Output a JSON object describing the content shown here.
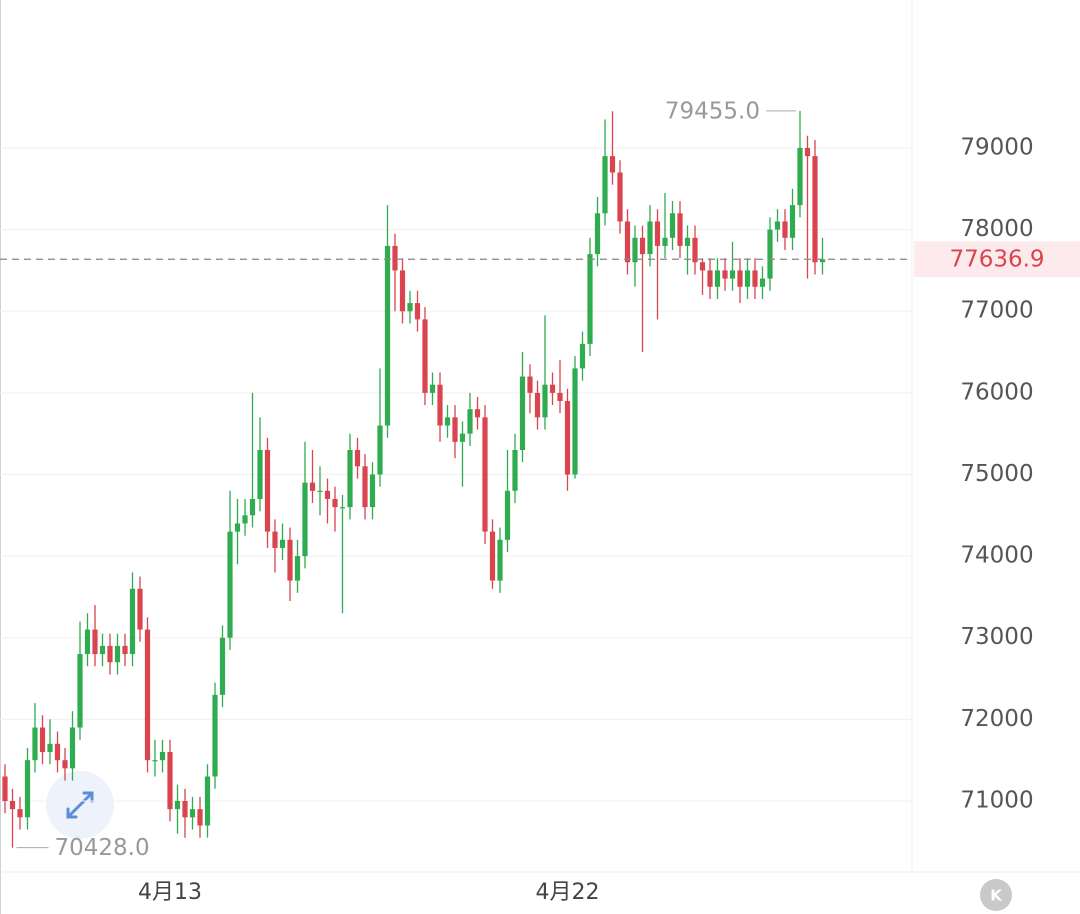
{
  "chart_data": {
    "type": "candlestick",
    "categories": [
      null,
      null,
      null,
      null,
      null,
      null,
      null,
      null,
      null,
      null,
      null,
      null,
      null,
      null,
      null,
      null,
      null,
      null,
      null,
      null,
      null,
      null,
      "4月13",
      null,
      null,
      null,
      null,
      null,
      null,
      null,
      null,
      null,
      null,
      null,
      null,
      null,
      null,
      null,
      null,
      null,
      null,
      null,
      null,
      null,
      null,
      null,
      null,
      null,
      null,
      null,
      null,
      null,
      null,
      null,
      null,
      null,
      null,
      null,
      null,
      null,
      null,
      null,
      null,
      null,
      null,
      null,
      null,
      null,
      null,
      null,
      null,
      null,
      null,
      null,
      null,
      "4月22",
      null,
      null,
      null,
      null,
      null,
      null,
      null,
      null,
      null,
      null,
      null,
      null,
      null,
      null,
      null,
      null,
      null,
      null,
      null,
      null,
      null,
      null,
      null,
      null,
      null,
      null,
      null,
      null,
      null,
      null,
      null,
      null,
      null,
      null
    ],
    "open": [
      71300,
      71000,
      70900,
      70800,
      71500,
      71900,
      71600,
      71700,
      71500,
      71400,
      71900,
      72800,
      73100,
      72800,
      72900,
      72700,
      72900,
      72800,
      73600,
      73100,
      71500,
      71500,
      71600,
      70900,
      71000,
      70800,
      70900,
      70700,
      71300,
      72300,
      73000,
      74300,
      74400,
      74500,
      74700,
      75300,
      74300,
      74100,
      74200,
      73700,
      74000,
      74900,
      74800,
      74800,
      74700,
      74600,
      74600,
      75300,
      75100,
      74600,
      75000,
      75600,
      77800,
      77500,
      77000,
      77100,
      76900,
      76000,
      76100,
      75600,
      75700,
      75400,
      75500,
      75800,
      75700,
      74300,
      73700,
      74200,
      74800,
      75300,
      76200,
      76000,
      75700,
      76100,
      76000,
      75900,
      75000,
      76300,
      76600,
      77700,
      78200,
      78900,
      78700,
      78100,
      77600,
      77900,
      77700,
      78100,
      77800,
      77900,
      78200,
      77800,
      77900,
      77600,
      77500,
      77300,
      77500,
      77400,
      77500,
      77300,
      77500,
      77300,
      77400,
      78000,
      78100,
      77900,
      78300,
      79000,
      78900,
      77600
    ],
    "high": [
      71450,
      71150,
      71050,
      71650,
      72200,
      72050,
      72000,
      71850,
      71650,
      72100,
      73200,
      73300,
      73400,
      73050,
      73050,
      73050,
      73050,
      73800,
      73750,
      73250,
      71750,
      71750,
      71750,
      71200,
      71150,
      71050,
      71050,
      71450,
      72450,
      73150,
      74800,
      74700,
      74700,
      76000,
      75700,
      75450,
      74450,
      74400,
      74350,
      74200,
      75400,
      75300,
      75100,
      74950,
      74850,
      74750,
      75500,
      75450,
      75250,
      75150,
      76300,
      78300,
      77950,
      77650,
      77250,
      77250,
      77050,
      76250,
      76250,
      75850,
      75850,
      75650,
      76000,
      75950,
      75850,
      74450,
      74350,
      75300,
      75500,
      76500,
      76350,
      76150,
      76950,
      76250,
      76400,
      76050,
      76450,
      76750,
      77900,
      78400,
      79350,
      79450,
      78850,
      78250,
      78050,
      78050,
      78300,
      78250,
      78450,
      78350,
      78350,
      78050,
      78050,
      77650,
      77650,
      77650,
      77650,
      77850,
      77650,
      77650,
      77650,
      77550,
      78150,
      78250,
      78250,
      78500,
      79455,
      79150,
      79100,
      77900
    ],
    "low": [
      70850,
      70428,
      70650,
      70650,
      71350,
      71450,
      71450,
      71350,
      71250,
      71250,
      71750,
      72650,
      72650,
      72650,
      72550,
      72550,
      72650,
      72650,
      72950,
      71350,
      71300,
      71350,
      70750,
      70600,
      70550,
      70650,
      70550,
      70550,
      71150,
      72150,
      72850,
      73900,
      74250,
      74350,
      74550,
      74100,
      73800,
      73950,
      73450,
      73550,
      73850,
      74650,
      74500,
      74400,
      74300,
      73300,
      74450,
      74950,
      74450,
      74450,
      74850,
      75450,
      77000,
      76850,
      76850,
      76750,
      75850,
      75850,
      75400,
      75450,
      75200,
      74850,
      75350,
      75550,
      74150,
      73600,
      73550,
      74050,
      74650,
      75150,
      75750,
      75550,
      75550,
      75850,
      75750,
      74800,
      74950,
      76150,
      76450,
      77550,
      78050,
      78550,
      77950,
      77450,
      77300,
      76500,
      77550,
      76900,
      77650,
      77750,
      77650,
      77450,
      77450,
      77200,
      77150,
      77150,
      77250,
      77250,
      77100,
      77150,
      77150,
      77150,
      77250,
      77850,
      77750,
      77750,
      78150,
      77400,
      77450,
      77450
    ],
    "close": [
      71000,
      70900,
      70800,
      71500,
      71900,
      71600,
      71700,
      71500,
      71400,
      71900,
      72800,
      73100,
      72800,
      72900,
      72700,
      72900,
      72800,
      73600,
      73100,
      71500,
      71500,
      71600,
      70900,
      71000,
      70800,
      70900,
      70700,
      71300,
      72300,
      73000,
      74300,
      74400,
      74500,
      74700,
      75300,
      74300,
      74100,
      74200,
      73700,
      74000,
      74900,
      74800,
      74800,
      74700,
      74600,
      74600,
      75300,
      75100,
      74600,
      75000,
      75600,
      77800,
      77500,
      77000,
      77100,
      76900,
      76000,
      76100,
      75600,
      75700,
      75400,
      75500,
      75800,
      75700,
      74300,
      73700,
      74200,
      74800,
      75300,
      76200,
      76000,
      75700,
      76100,
      76000,
      75900,
      75000,
      76300,
      76600,
      77700,
      78200,
      78900,
      78700,
      78100,
      77600,
      77900,
      77700,
      78100,
      77800,
      77900,
      78200,
      77800,
      77900,
      77600,
      77500,
      77300,
      77500,
      77400,
      77500,
      77300,
      77500,
      77300,
      77400,
      78000,
      78100,
      77900,
      78300,
      79000,
      78900,
      77600,
      77636.9
    ],
    "up_color": "#2eac4f",
    "down_color": "#d9444f",
    "ylim": [
      70130,
      80813
    ],
    "yticks": [
      71000,
      72000,
      73000,
      74000,
      75000,
      76000,
      77000,
      78000,
      79000
    ],
    "grid": true,
    "last_price": {
      "value": 77636.9,
      "label": "77636.9"
    },
    "max_label": {
      "value": 79455,
      "label": "79455.0"
    },
    "min_label": {
      "value": 70428,
      "label": "70428.0"
    },
    "badge": "K"
  }
}
